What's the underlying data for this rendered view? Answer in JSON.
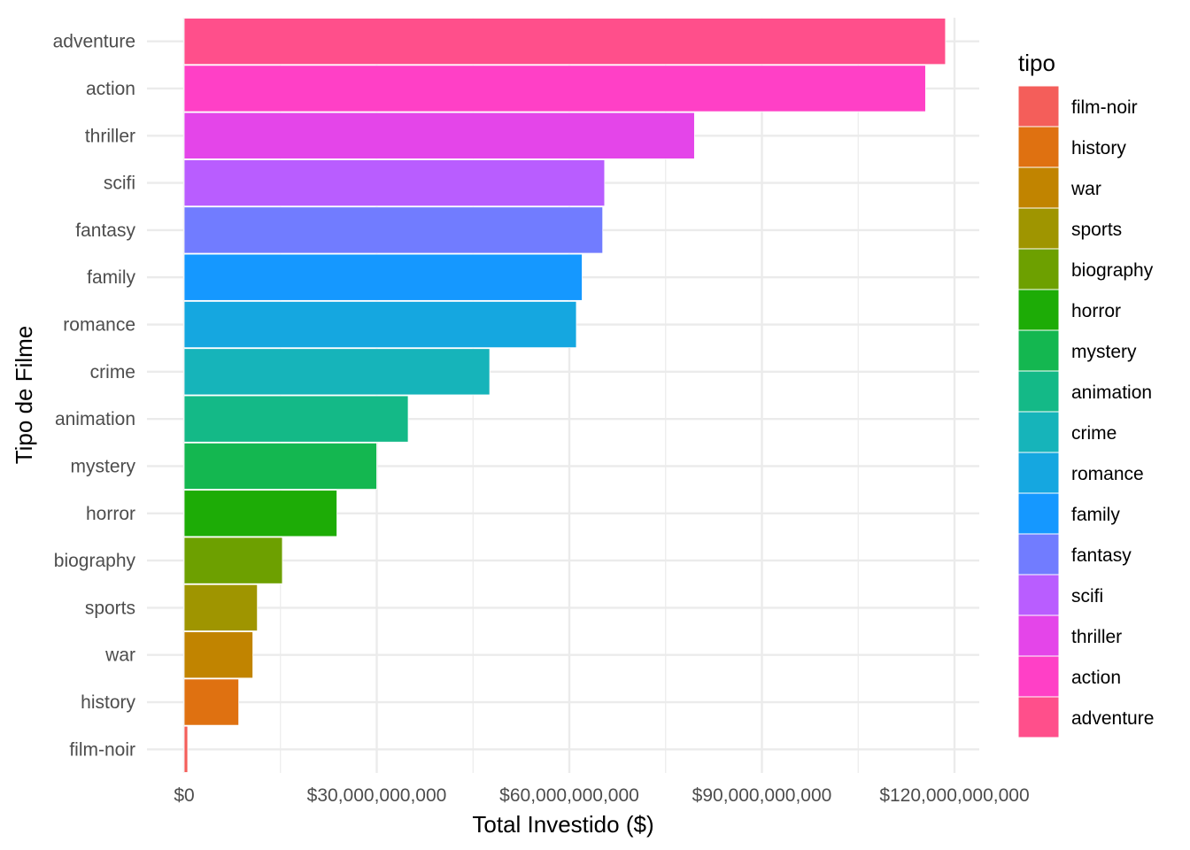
{
  "chart_data": {
    "type": "bar",
    "orientation": "horizontal",
    "xlabel": "Total Investido ($)",
    "ylabel": "Tipo de Filme",
    "xlim": [
      0,
      124000000000
    ],
    "x_ticks": [
      0,
      30000000000,
      60000000000,
      90000000000,
      120000000000
    ],
    "x_tick_labels": [
      "$0",
      "$30,000,000,000",
      "$60,000,000,000",
      "$90,000,000,000",
      "$120,000,000,000"
    ],
    "categories": [
      "adventure",
      "action",
      "thriller",
      "scifi",
      "fantasy",
      "family",
      "romance",
      "crime",
      "animation",
      "mystery",
      "horror",
      "biography",
      "sports",
      "war",
      "history",
      "film-noir"
    ],
    "values": [
      118600000000,
      115500000000,
      79500000000,
      65500000000,
      65200000000,
      62000000000,
      61100000000,
      47600000000,
      34900000000,
      30000000000,
      23800000000,
      15300000000,
      11400000000,
      10700000000,
      8500000000,
      550000000
    ],
    "colors": [
      "#FF4F8B",
      "#FF40C6",
      "#E445E9",
      "#B95DFF",
      "#717CFF",
      "#1598FF",
      "#15A7E0",
      "#16B4BA",
      "#14B987",
      "#14B750",
      "#1DAC06",
      "#6DA000",
      "#9F9500",
      "#C18400",
      "#DF7111",
      "#F45E5A"
    ],
    "grid": true,
    "legend": {
      "title": "tipo",
      "placement": "right",
      "entries": [
        "film-noir",
        "history",
        "war",
        "sports",
        "biography",
        "horror",
        "mystery",
        "animation",
        "crime",
        "romance",
        "family",
        "fantasy",
        "scifi",
        "thriller",
        "action",
        "adventure"
      ],
      "colors": [
        "#F45E5A",
        "#DF7111",
        "#C18400",
        "#9F9500",
        "#6DA000",
        "#1DAC06",
        "#14B750",
        "#14B987",
        "#16B4BA",
        "#15A7E0",
        "#1598FF",
        "#717CFF",
        "#B95DFF",
        "#E445E9",
        "#FF40C6",
        "#FF4F8B"
      ]
    }
  }
}
